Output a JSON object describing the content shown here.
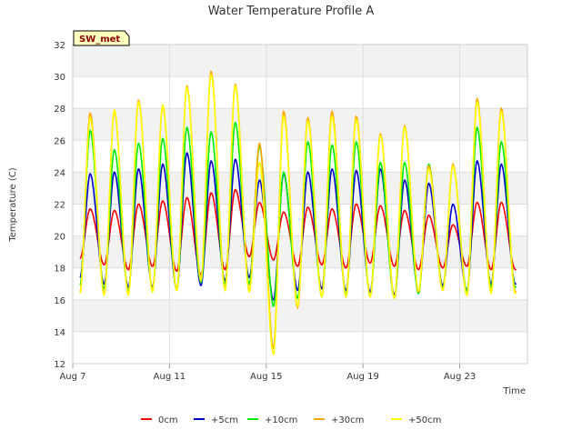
{
  "chart_data": {
    "type": "line",
    "title": "Water Temperature Profile A",
    "xlabel": "Time",
    "ylabel": "Temperature (C)",
    "site_label": "SW_met",
    "xlim": [
      7.0,
      25.8
    ],
    "ylim": [
      12,
      32
    ],
    "x_ticks": [
      {
        "value": 7,
        "label": "Aug 7"
      },
      {
        "value": 11,
        "label": "Aug 11"
      },
      {
        "value": 15,
        "label": "Aug 15"
      },
      {
        "value": 19,
        "label": "Aug 19"
      },
      {
        "value": 23,
        "label": "Aug 23"
      }
    ],
    "y_ticks": [
      12,
      14,
      16,
      18,
      20,
      22,
      24,
      26,
      28,
      30,
      32
    ],
    "grid": true,
    "legend_position": "bottom",
    "series": [
      {
        "name": "0cm",
        "color": "#ff0000",
        "days": [
          [
            7.3,
            18.6,
            21.7
          ],
          [
            8.3,
            18.2,
            21.6
          ],
          [
            9.3,
            17.9,
            22.0
          ],
          [
            10.3,
            18.1,
            22.2
          ],
          [
            11.3,
            17.8,
            22.4
          ],
          [
            12.3,
            17.6,
            22.7
          ],
          [
            13.3,
            17.9,
            22.9
          ],
          [
            14.3,
            18.7,
            22.1
          ],
          [
            15.3,
            18.5,
            21.5
          ],
          [
            16.3,
            18.1,
            21.8
          ],
          [
            17.3,
            18.2,
            21.7
          ],
          [
            18.3,
            18.0,
            22.0
          ],
          [
            19.3,
            18.3,
            21.9
          ],
          [
            20.3,
            18.1,
            21.6
          ],
          [
            21.3,
            17.9,
            21.3
          ],
          [
            22.3,
            18.0,
            20.7
          ],
          [
            23.3,
            18.1,
            22.1
          ],
          [
            24.3,
            17.9,
            22.1
          ]
        ]
      },
      {
        "name": "+5cm",
        "color": "#0000cc",
        "days": [
          [
            7.3,
            17.4,
            23.9
          ],
          [
            8.3,
            17.0,
            24.0
          ],
          [
            9.3,
            16.8,
            24.2
          ],
          [
            10.3,
            16.8,
            24.5
          ],
          [
            11.3,
            16.7,
            25.2
          ],
          [
            12.3,
            16.9,
            24.7
          ],
          [
            13.3,
            17.2,
            24.8
          ],
          [
            14.3,
            17.4,
            23.5
          ],
          [
            15.3,
            16.0,
            23.9
          ],
          [
            16.3,
            16.6,
            24.0
          ],
          [
            17.3,
            16.7,
            24.2
          ],
          [
            18.3,
            16.6,
            24.1
          ],
          [
            19.3,
            16.5,
            24.2
          ],
          [
            20.3,
            16.3,
            23.5
          ],
          [
            21.3,
            16.6,
            23.3
          ],
          [
            22.3,
            16.9,
            22.0
          ],
          [
            23.3,
            16.6,
            24.7
          ],
          [
            24.3,
            17.0,
            24.5
          ]
        ]
      },
      {
        "name": "+10cm",
        "color": "#00ee00",
        "days": [
          [
            7.3,
            16.9,
            26.6
          ],
          [
            8.3,
            16.7,
            25.4
          ],
          [
            9.3,
            16.6,
            25.8
          ],
          [
            10.3,
            16.7,
            26.1
          ],
          [
            11.3,
            16.6,
            26.8
          ],
          [
            12.3,
            17.1,
            26.5
          ],
          [
            13.3,
            17.0,
            27.1
          ],
          [
            14.3,
            17.0,
            25.6
          ],
          [
            15.3,
            15.6,
            24.0
          ],
          [
            16.3,
            16.1,
            25.9
          ],
          [
            17.3,
            16.2,
            25.7
          ],
          [
            18.3,
            16.4,
            25.9
          ],
          [
            19.3,
            16.2,
            24.6
          ],
          [
            20.3,
            16.1,
            24.6
          ],
          [
            21.3,
            16.4,
            24.5
          ],
          [
            22.3,
            16.7,
            24.4
          ],
          [
            23.3,
            16.5,
            26.8
          ],
          [
            24.3,
            16.8,
            25.9
          ]
        ]
      },
      {
        "name": "+30cm",
        "color": "#ffa500",
        "days": [
          [
            7.3,
            16.5,
            27.7
          ],
          [
            8.3,
            16.4,
            27.8
          ],
          [
            9.3,
            16.4,
            28.5
          ],
          [
            10.3,
            16.6,
            28.1
          ],
          [
            11.3,
            16.6,
            29.4
          ],
          [
            12.3,
            17.3,
            30.3
          ],
          [
            13.3,
            16.7,
            29.5
          ],
          [
            14.3,
            16.6,
            25.8
          ],
          [
            15.3,
            13.0,
            27.8
          ],
          [
            16.3,
            15.5,
            27.4
          ],
          [
            17.3,
            16.2,
            27.8
          ],
          [
            18.3,
            16.2,
            27.5
          ],
          [
            19.3,
            16.2,
            26.4
          ],
          [
            20.3,
            16.1,
            26.9
          ],
          [
            21.3,
            16.5,
            24.4
          ],
          [
            22.3,
            16.6,
            24.5
          ],
          [
            23.3,
            16.3,
            28.6
          ],
          [
            24.3,
            16.5,
            28.0
          ]
        ]
      },
      {
        "name": "+50cm",
        "color": "#ffff00",
        "days": [
          [
            7.3,
            16.4,
            27.4
          ],
          [
            8.3,
            16.3,
            27.9
          ],
          [
            9.3,
            16.3,
            28.4
          ],
          [
            10.3,
            16.5,
            28.2
          ],
          [
            11.3,
            16.6,
            29.3
          ],
          [
            12.3,
            17.2,
            30.1
          ],
          [
            13.3,
            16.6,
            29.4
          ],
          [
            14.3,
            16.5,
            24.6
          ],
          [
            15.3,
            12.6,
            27.5
          ],
          [
            16.3,
            15.6,
            27.2
          ],
          [
            17.3,
            16.2,
            27.5
          ],
          [
            18.3,
            16.2,
            27.3
          ],
          [
            19.3,
            16.2,
            26.3
          ],
          [
            20.3,
            16.1,
            26.8
          ],
          [
            21.3,
            16.6,
            24.2
          ],
          [
            22.3,
            16.6,
            24.4
          ],
          [
            23.3,
            16.3,
            28.4
          ],
          [
            24.3,
            16.4,
            27.8
          ]
        ]
      }
    ]
  }
}
